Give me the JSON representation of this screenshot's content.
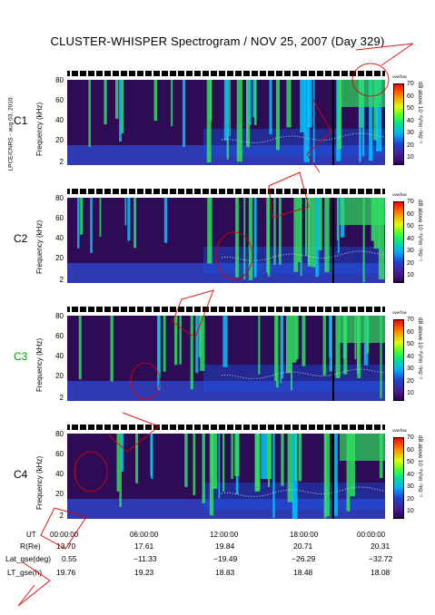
{
  "chart_data": {
    "type": "heatmap",
    "title": "CLUSTER-WHISPER Spectrogram / NOV 25, 2007 (Day 329)",
    "side_label": "LPCE/CNRS - aug 03, 2010",
    "ylabel": "Frequency (kHz)",
    "yticks": [
      "80",
      "60",
      "40",
      "20",
      "2"
    ],
    "colorbar_label": "dB above 10⁻⁸V²m⁻²Hz⁻¹",
    "colorbar_ticks": [
      "70",
      "60",
      "50",
      "40",
      "30",
      "20",
      "10"
    ],
    "colorbar_note": "overfow",
    "colorbar_range": [
      10,
      70
    ],
    "ylim": [
      2,
      80
    ],
    "x_range": [
      "00:00:00",
      "24:00:00"
    ],
    "panels": [
      {
        "name": "C1",
        "color": "#000000"
      },
      {
        "name": "C2",
        "color": "#000000"
      },
      {
        "name": "C3",
        "color": "#00a000"
      },
      {
        "name": "C4",
        "color": "#000000"
      }
    ],
    "x_axis": {
      "ut_label": "UT",
      "ticks": [
        "00:00:00",
        "06:00:00",
        "12:00:00",
        "18:00:00",
        "00:00:00"
      ]
    },
    "orbit_rows": [
      {
        "label": "R(Re)",
        "values": [
          "13.70",
          "17.61",
          "19.84",
          "20.71",
          "20.31"
        ]
      },
      {
        "label": "Lat_gse(deg)",
        "values": [
          "0.55",
          "−11.33",
          "−19.49",
          "−26.29",
          "−32.72"
        ]
      },
      {
        "label": "LT_gse(h)",
        "values": [
          "19.76",
          "19.23",
          "18.83",
          "18.48",
          "18.08"
        ]
      }
    ],
    "colors": {
      "background": "#2d0b55",
      "band": "#3060ff",
      "bursts": "#30e060",
      "watermark": "#e00000"
    }
  }
}
